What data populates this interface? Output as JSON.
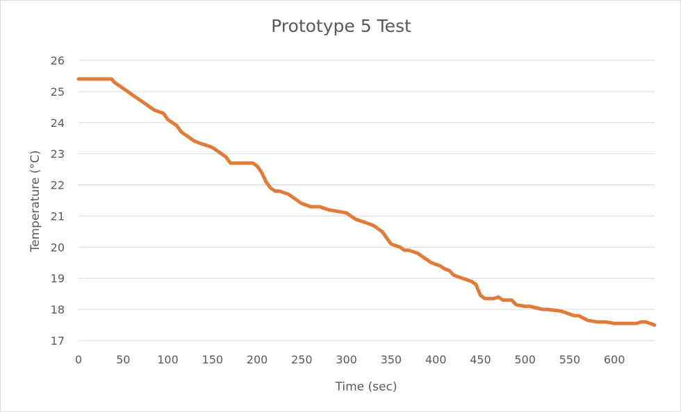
{
  "chart_data": {
    "type": "line",
    "title": "Prototype 5 Test",
    "xlabel": "Time (sec)",
    "ylabel": "Temperature (°C)",
    "xlim": [
      0,
      645
    ],
    "ylim": [
      17,
      26
    ],
    "x_ticks": [
      "0",
      "50",
      "100",
      "150",
      "200",
      "250",
      "300",
      "350",
      "400",
      "450",
      "500",
      "550",
      "600"
    ],
    "y_ticks": [
      "17",
      "18",
      "19",
      "20",
      "21",
      "22",
      "23",
      "24",
      "25",
      "26"
    ],
    "grid": "horizontal",
    "series_color": "#e07b39",
    "series": [
      {
        "x": [
          0,
          37,
          40,
          45,
          50,
          55,
          60,
          65,
          70,
          75,
          80,
          85,
          90,
          95,
          100,
          105,
          110,
          115,
          120,
          125,
          130,
          135,
          140,
          145,
          150,
          155,
          160,
          165,
          170,
          180,
          190,
          195,
          200,
          205,
          210,
          215,
          220,
          225,
          230,
          235,
          240,
          245,
          250,
          260,
          270,
          280,
          290,
          300,
          305,
          310,
          320,
          325,
          330,
          335,
          340,
          345,
          350,
          355,
          360,
          365,
          370,
          380,
          385,
          390,
          395,
          400,
          405,
          410,
          415,
          420,
          425,
          430,
          435,
          440,
          445,
          450,
          455,
          465,
          470,
          475,
          485,
          490,
          500,
          505,
          520,
          525,
          540,
          545,
          555,
          560,
          570,
          580,
          590,
          600,
          610,
          620,
          625,
          630,
          635,
          645
        ],
        "values": [
          25.4,
          25.4,
          25.3,
          25.2,
          25.1,
          25.0,
          24.9,
          24.8,
          24.7,
          24.6,
          24.5,
          24.4,
          24.35,
          24.3,
          24.1,
          24.0,
          23.9,
          23.7,
          23.6,
          23.5,
          23.4,
          23.35,
          23.3,
          23.25,
          23.2,
          23.1,
          23.0,
          22.9,
          22.7,
          22.7,
          22.7,
          22.7,
          22.6,
          22.4,
          22.1,
          21.9,
          21.8,
          21.8,
          21.75,
          21.7,
          21.6,
          21.5,
          21.4,
          21.3,
          21.3,
          21.2,
          21.15,
          21.1,
          21.0,
          20.9,
          20.8,
          20.75,
          20.7,
          20.6,
          20.5,
          20.3,
          20.1,
          20.05,
          20.0,
          19.9,
          19.9,
          19.8,
          19.7,
          19.6,
          19.5,
          19.45,
          19.4,
          19.3,
          19.25,
          19.1,
          19.05,
          19.0,
          18.95,
          18.9,
          18.8,
          18.45,
          18.35,
          18.35,
          18.4,
          18.3,
          18.3,
          18.15,
          18.1,
          18.1,
          18.0,
          18.0,
          17.95,
          17.9,
          17.8,
          17.8,
          17.65,
          17.6,
          17.6,
          17.55,
          17.55,
          17.55,
          17.55,
          17.6,
          17.6,
          17.5
        ]
      }
    ]
  }
}
